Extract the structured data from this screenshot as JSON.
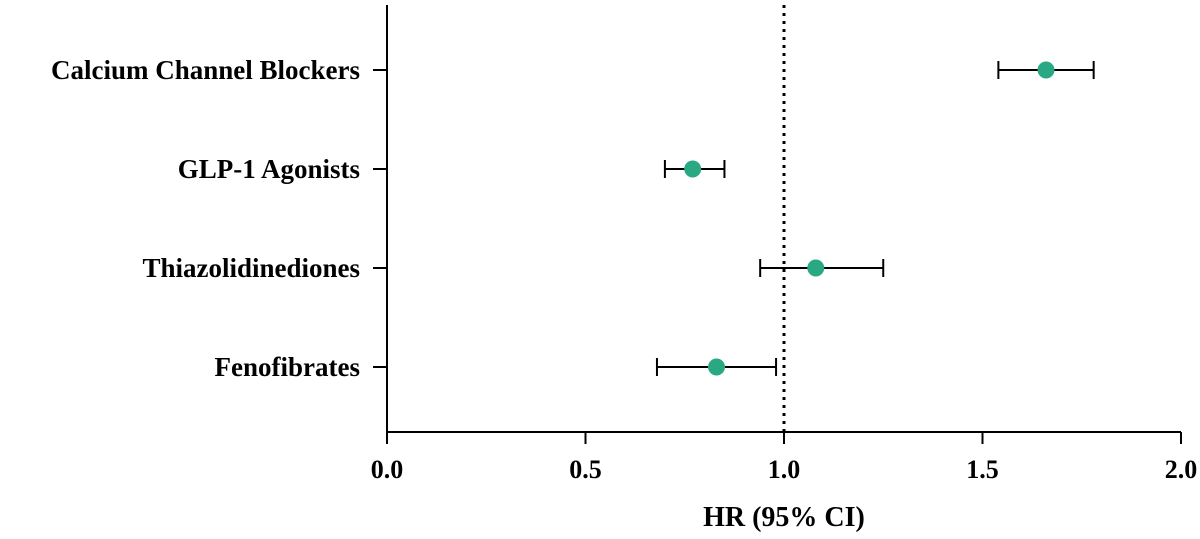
{
  "chart_data": {
    "type": "scatter",
    "subtype": "forest-plot",
    "title": "",
    "xlabel": "HR (95% CI)",
    "ylabel": "",
    "xlim": [
      0.0,
      2.0
    ],
    "xticks": [
      "0.0",
      "0.5",
      "1.0",
      "1.5",
      "2.0"
    ],
    "reference_line": {
      "x": 1.0,
      "style": "dotted"
    },
    "grid": false,
    "legend": "none",
    "marker_color": "#2aa884",
    "categories": [
      "Calcium Channel Blockers",
      "GLP-1 Agonists",
      "Thiazolidinediones",
      "Fenofibrates"
    ],
    "series": [
      {
        "points": [
          {
            "label": "Calcium Channel Blockers",
            "hr": 1.66,
            "ci_low": 1.54,
            "ci_high": 1.78
          },
          {
            "label": "GLP-1 Agonists",
            "hr": 0.77,
            "ci_low": 0.7,
            "ci_high": 0.85
          },
          {
            "label": "Thiazolidinediones",
            "hr": 1.08,
            "ci_low": 0.94,
            "ci_high": 1.25
          },
          {
            "label": "Fenofibrates",
            "hr": 0.83,
            "ci_low": 0.68,
            "ci_high": 0.98
          }
        ]
      }
    ]
  }
}
